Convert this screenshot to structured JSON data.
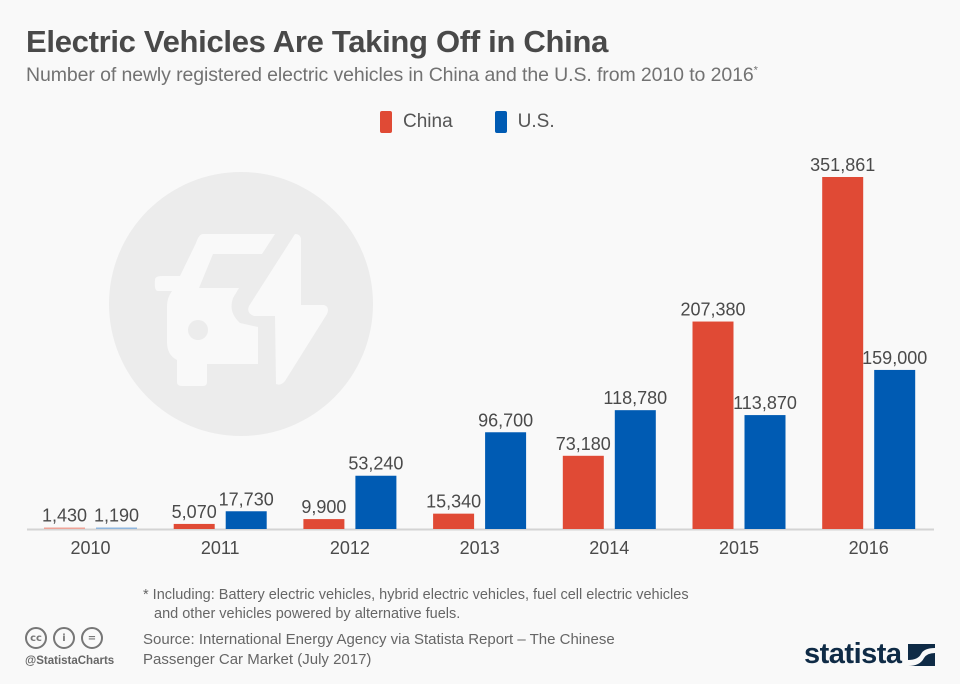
{
  "header": {
    "title": "Electric Vehicles Are Taking Off in China",
    "subtitle": "Number of newly registered electric vehicles in China and the U.S. from 2010 to 2016",
    "subtitle_mark": "*"
  },
  "legend": [
    {
      "label": "China",
      "color": "#e04a35"
    },
    {
      "label": "U.S.",
      "color": "#005bb3"
    }
  ],
  "chart_data": {
    "type": "bar",
    "title": "Electric Vehicles Are Taking Off in China",
    "xlabel": "",
    "ylabel": "",
    "categories": [
      "2010",
      "2011",
      "2012",
      "2013",
      "2014",
      "2015",
      "2016"
    ],
    "series": [
      {
        "name": "China",
        "color": "#e04a35",
        "values": [
          1430,
          5070,
          9900,
          15340,
          73180,
          207380,
          351861
        ],
        "labels": [
          "1,430",
          "5,070",
          "9,900",
          "15,340",
          "73,180",
          "207,380",
          "351,861"
        ]
      },
      {
        "name": "U.S.",
        "color": "#005bb3",
        "values": [
          1190,
          17730,
          53240,
          96700,
          118780,
          113870,
          159000
        ],
        "labels": [
          "1,190",
          "17,730",
          "53,240",
          "96,700",
          "118,780",
          "113,870",
          "159,000"
        ]
      }
    ],
    "ylim": [
      0,
      360000
    ],
    "grid": false,
    "legend_position": "top-center",
    "data_labels": true
  },
  "footer": {
    "footnote_line1": "* Including: Battery electric vehicles, hybrid electric vehicles, fuel cell electric vehicles",
    "footnote_line2": "and other vehicles powered by alternative fuels.",
    "source_line1": "Source: International Energy Agency via Statista Report – The Chinese",
    "source_line2": "Passenger Car Market (July 2017)",
    "handle": "@StatistaCharts",
    "cc_icons": [
      "cc",
      "i",
      "="
    ],
    "logo_text": "statista"
  }
}
